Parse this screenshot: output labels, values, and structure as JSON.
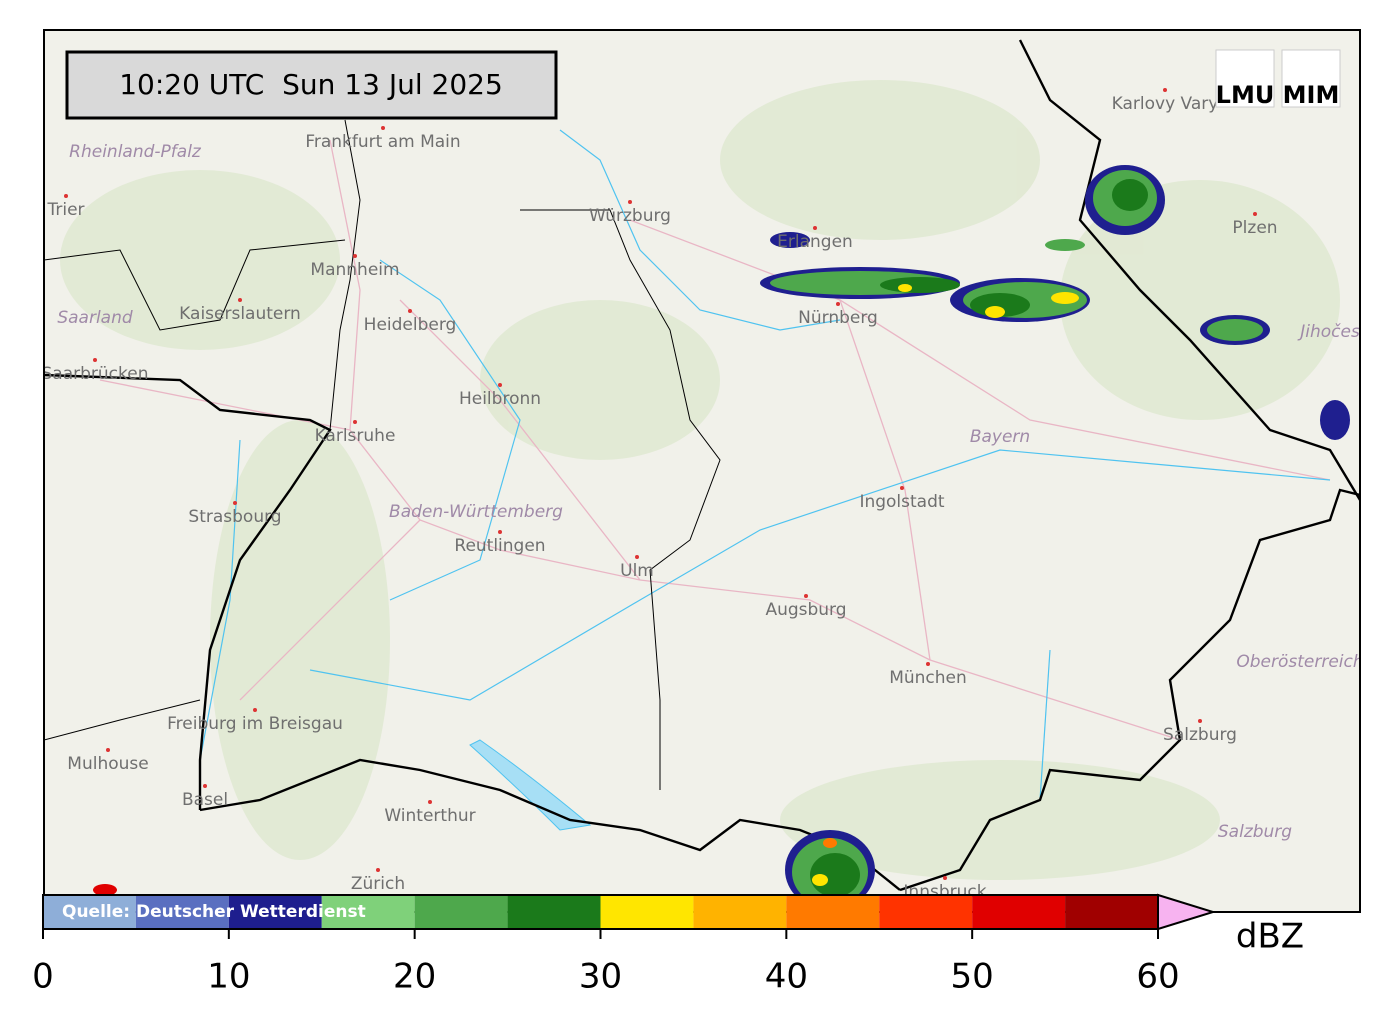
{
  "timestamp": "10:20 UTC  Sun 13 Jul 2025",
  "logos": [
    "LMU",
    "MIM"
  ],
  "source": "Quelle: Deutscher Wetterdienst",
  "places": [
    "Frankfurt am Main",
    "Würzburg",
    "Erlangen",
    "Nürnberg",
    "Karlovy Vary",
    "Plzen",
    "Mannheim",
    "Kaiserslautern",
    "Heidelberg",
    "Saarbrücken",
    "Trier",
    "Heilbronn",
    "Karlsruhe",
    "Strasbourg",
    "Reutlingen",
    "Ulm",
    "Ingolstadt",
    "Augsburg",
    "München",
    "Freiburg im Breisgau",
    "Mulhouse",
    "Basel",
    "Winterthur",
    "Zürich",
    "Salzburg",
    "Innsbruck"
  ],
  "regions": [
    "Rheinland-Pfalz",
    "Saarland",
    "Baden-Württemberg",
    "Bayern",
    "Oberösterreich",
    "Salzburg",
    "Jihočeský"
  ],
  "colorbar": {
    "bounds": [
      0,
      5,
      10,
      15,
      20,
      25,
      30,
      35,
      40,
      45,
      50,
      55,
      60
    ],
    "colors": [
      "#8eaed8",
      "#5a6fc0",
      "#1e1e8e",
      "#7fd17a",
      "#4ea84c",
      "#1b7a1b",
      "#ffe600",
      "#ffb300",
      "#ff7a00",
      "#ff3300",
      "#e00000",
      "#a00000"
    ],
    "extend_color": "#f7b3f0",
    "ticks": [
      0,
      10,
      20,
      30,
      40,
      50,
      60
    ],
    "label": "dBZ"
  }
}
